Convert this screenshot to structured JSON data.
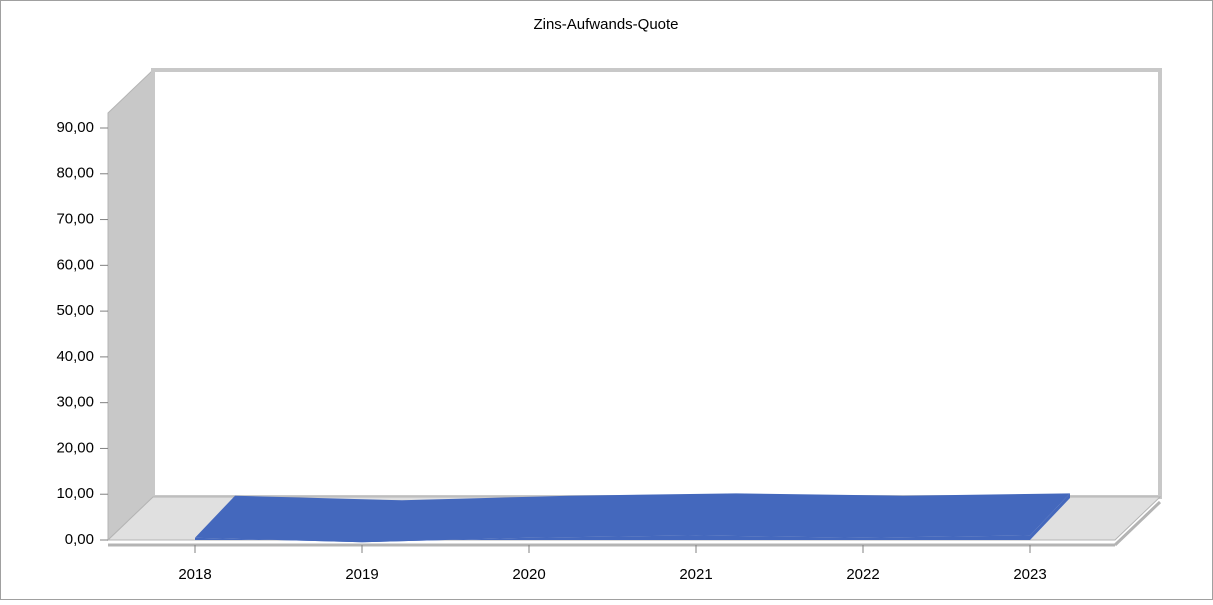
{
  "chart_data": {
    "type": "area3d",
    "title": "Zins-Aufwands-Quote",
    "categories": [
      "2018",
      "2019",
      "2020",
      "2021",
      "2022",
      "2023"
    ],
    "values": [
      0.5,
      -0.5,
      0.5,
      1.0,
      0.5,
      1.0
    ],
    "color": "#4468bd",
    "ylim": [
      0,
      90
    ],
    "yticks": [
      {
        "value": 0,
        "label": "0,00"
      },
      {
        "value": 10,
        "label": "10,00"
      },
      {
        "value": 20,
        "label": "20,00"
      },
      {
        "value": 30,
        "label": "30,00"
      },
      {
        "value": 40,
        "label": "40,00"
      },
      {
        "value": 50,
        "label": "50,00"
      },
      {
        "value": 60,
        "label": "60,00"
      },
      {
        "value": 70,
        "label": "70,00"
      },
      {
        "value": 80,
        "label": "80,00"
      },
      {
        "value": 90,
        "label": "90,00"
      }
    ]
  }
}
